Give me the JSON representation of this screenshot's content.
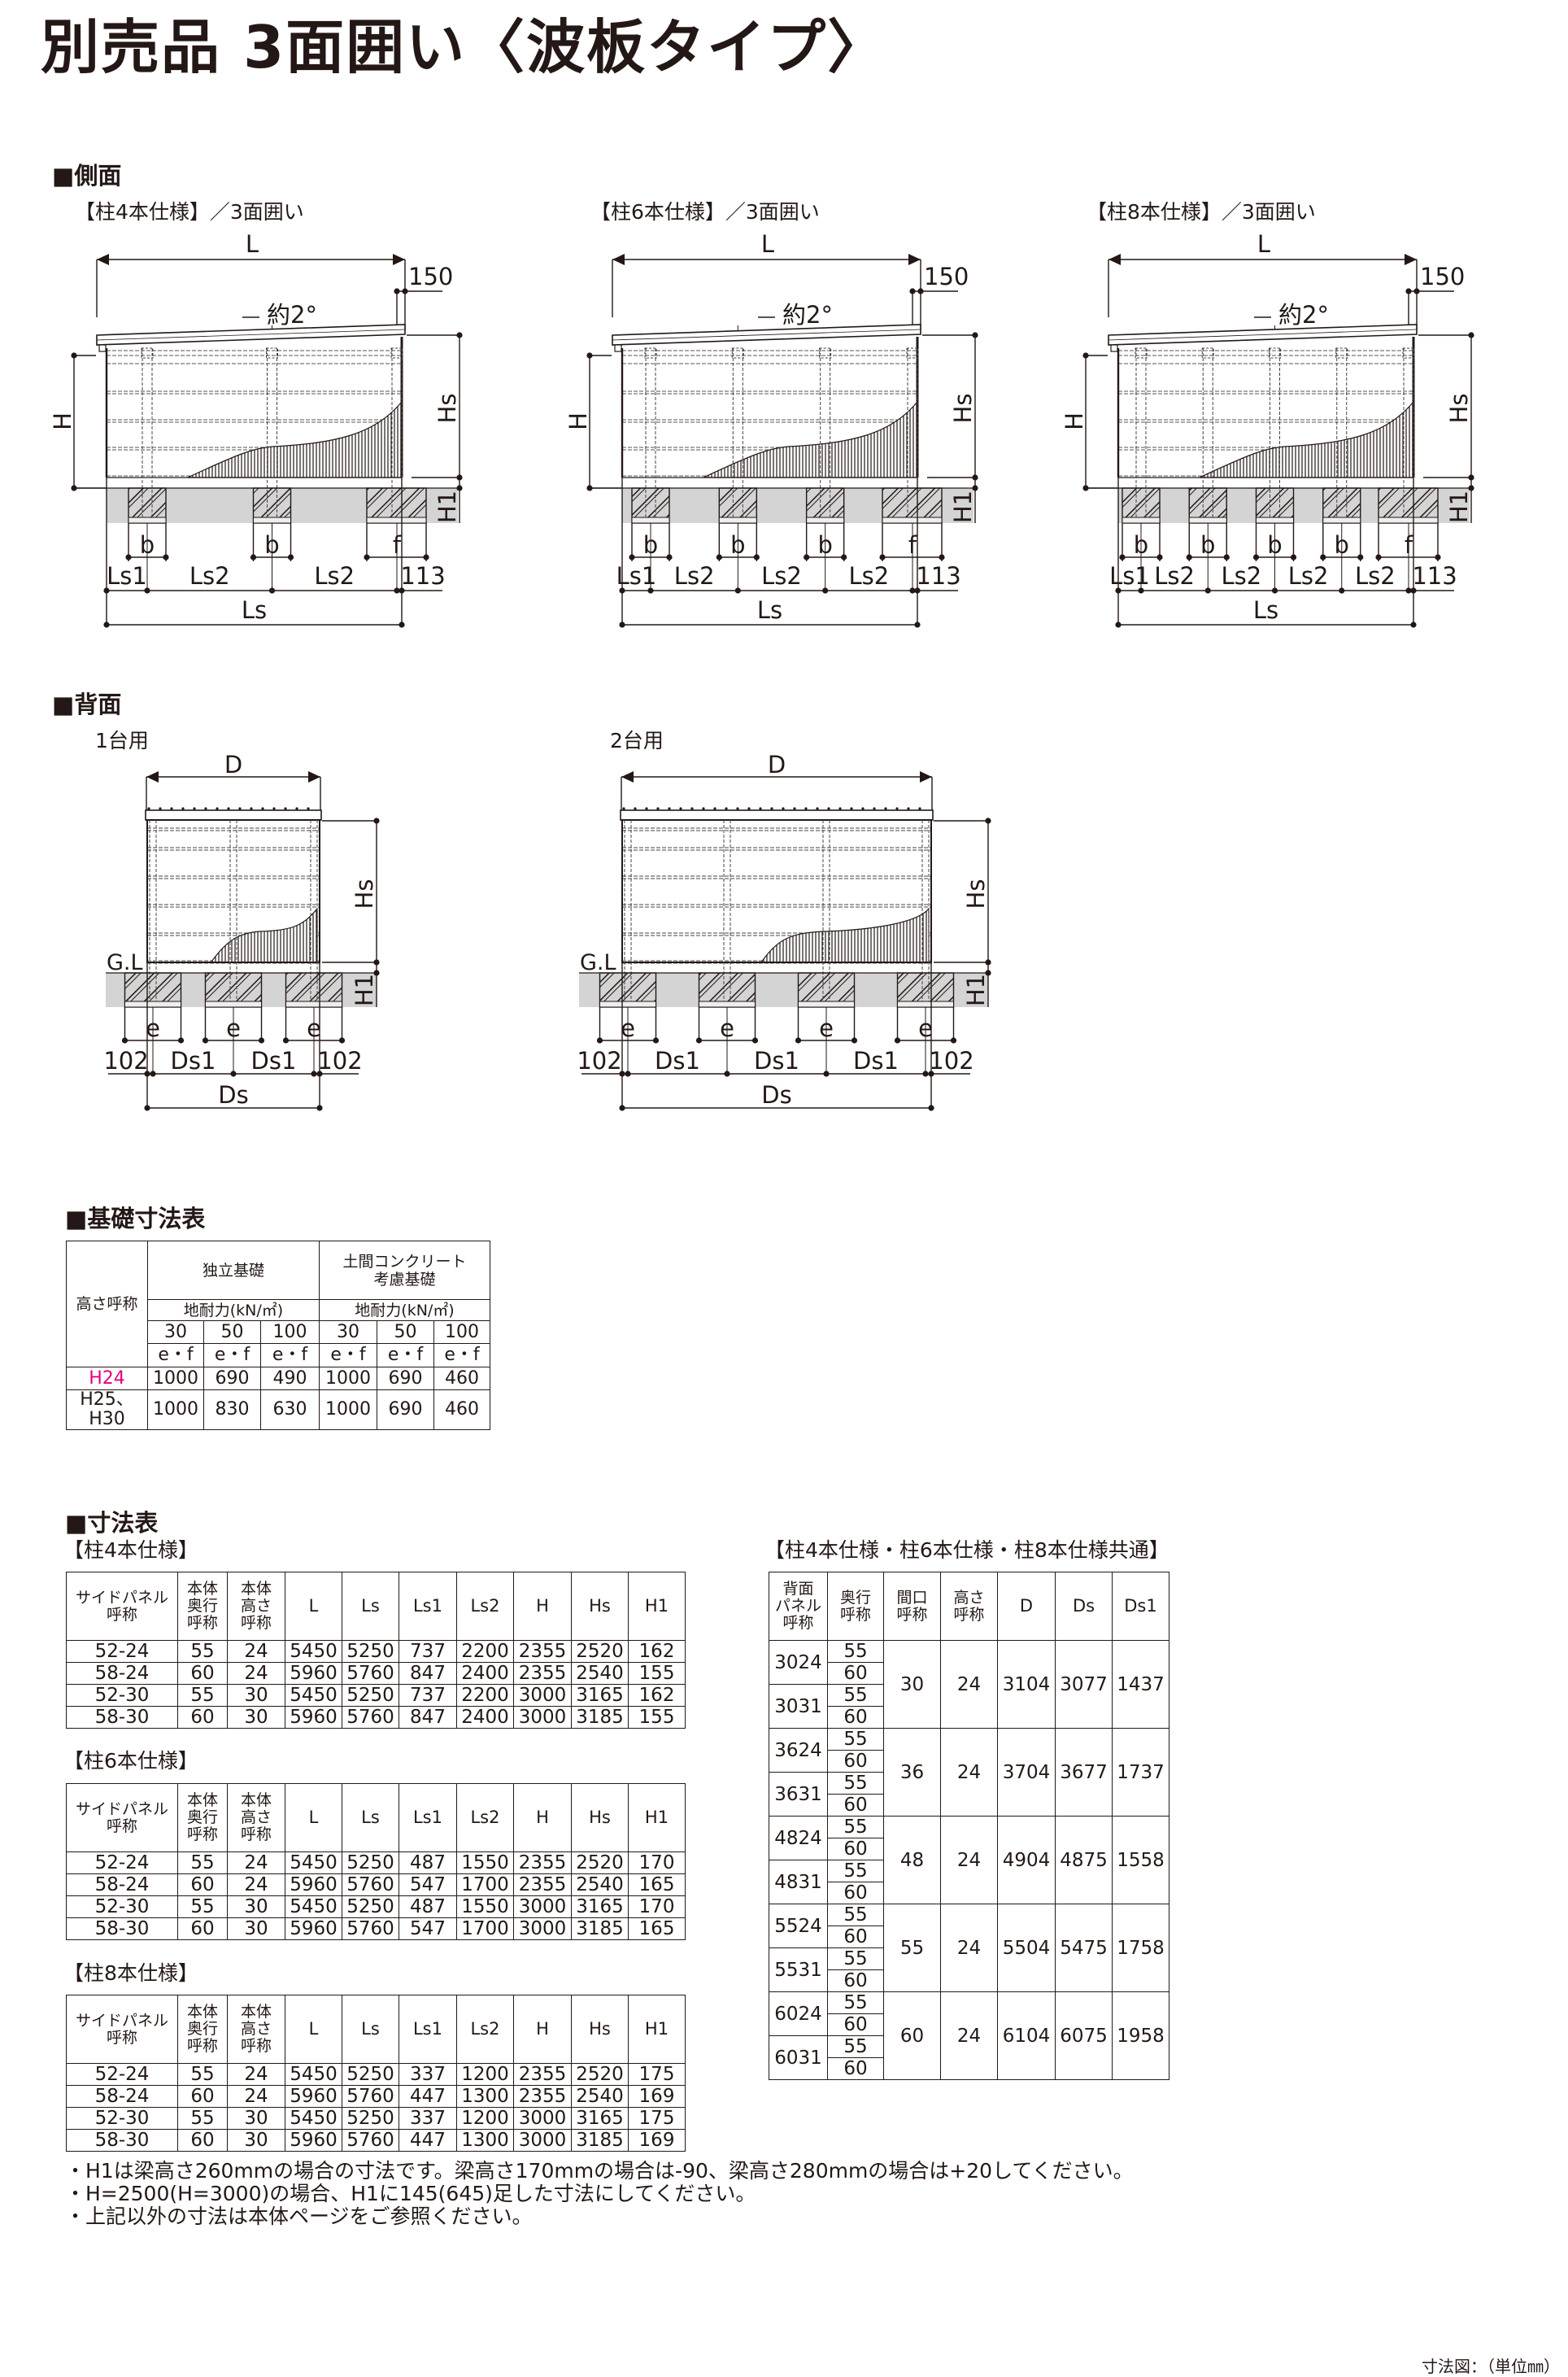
{
  "title": "別売品 3面囲い〈波板タイプ〉",
  "colors": {
    "text": "#231815",
    "highlight": "#e4007f",
    "ground": "#d4d4d4"
  },
  "side": {
    "heading": "■側面",
    "views": [
      {
        "caption": "【柱4本仕様】／3面囲い",
        "L": "L",
        "overhang": "150",
        "angle": "約2°",
        "H": "H",
        "Hs": "Hs",
        "H1": "H1",
        "post_labels": [
          "b",
          "b",
          "f"
        ],
        "segments": [
          "Ls1",
          "Ls2",
          "Ls2"
        ],
        "end": "113",
        "total": "Ls"
      },
      {
        "caption": "【柱6本仕様】／3面囲い",
        "L": "L",
        "overhang": "150",
        "angle": "約2°",
        "H": "H",
        "Hs": "Hs",
        "H1": "H1",
        "post_labels": [
          "b",
          "b",
          "b",
          "f"
        ],
        "segments": [
          "Ls1",
          "Ls2",
          "Ls2",
          "Ls2"
        ],
        "end": "113",
        "total": "Ls"
      },
      {
        "caption": "【柱8本仕様】／3面囲い",
        "L": "L",
        "overhang": "150",
        "angle": "約2°",
        "H": "H",
        "Hs": "Hs",
        "H1": "H1",
        "post_labels": [
          "b",
          "b",
          "b",
          "b",
          "f"
        ],
        "segments": [
          "Ls1",
          "Ls2",
          "Ls2",
          "Ls2",
          "Ls2"
        ],
        "end": "113",
        "total": "Ls"
      }
    ]
  },
  "back": {
    "heading": "■背面",
    "views": [
      {
        "caption": "1台用",
        "D": "D",
        "Hs": "Hs",
        "H1": "H1",
        "GL": "G.L",
        "post_labels": [
          "e",
          "e",
          "e"
        ],
        "segments": [
          "Ds1",
          "Ds1"
        ],
        "end_left": "102",
        "end_right": "102",
        "total": "Ds"
      },
      {
        "caption": "2台用",
        "D": "D",
        "Hs": "Hs",
        "H1": "H1",
        "GL": "G.L",
        "post_labels": [
          "e",
          "e",
          "e",
          "e"
        ],
        "segments": [
          "Ds1",
          "Ds1",
          "Ds1"
        ],
        "end_left": "102",
        "end_right": "102",
        "total": "Ds"
      }
    ]
  },
  "foundation": {
    "heading": "■基礎寸法表",
    "row_header": "高さ呼称",
    "groups": [
      "独立基礎",
      "土間コンクリート\n考慮基礎"
    ],
    "bearing": [
      "地耐力(kN/㎡)",
      "地耐力(kN/㎡)"
    ],
    "loads": [
      "30",
      "50",
      "100",
      "30",
      "50",
      "100"
    ],
    "sub": [
      "e・f",
      "e・f",
      "e・f",
      "e・f",
      "e・f",
      "e・f"
    ],
    "rows": [
      {
        "name": "H24",
        "values": [
          "1000",
          "690",
          "490",
          "1000",
          "690",
          "460"
        ]
      },
      {
        "name": "H25、H30",
        "values": [
          "1000",
          "830",
          "630",
          "1000",
          "690",
          "460"
        ]
      }
    ]
  },
  "dimensions": {
    "heading": "■寸法表",
    "tables": [
      {
        "caption": "【柱4本仕様】",
        "headers": [
          "サイドパネル\n呼称",
          "本体\n奥行\n呼称",
          "本体\n高さ\n呼称",
          "L",
          "Ls",
          "Ls1",
          "Ls2",
          "H",
          "Hs",
          "H1"
        ],
        "rows": [
          [
            "52-24",
            "55",
            "24",
            "5450",
            "5250",
            "737",
            "2200",
            "2355",
            "2520",
            "162"
          ],
          [
            "58-24",
            "60",
            "24",
            "5960",
            "5760",
            "847",
            "2400",
            "2355",
            "2540",
            "155"
          ],
          [
            "52-30",
            "55",
            "30",
            "5450",
            "5250",
            "737",
            "2200",
            "3000",
            "3165",
            "162"
          ],
          [
            "58-30",
            "60",
            "30",
            "5960",
            "5760",
            "847",
            "2400",
            "3000",
            "3185",
            "155"
          ]
        ]
      },
      {
        "caption": "【柱6本仕様】",
        "headers": [
          "サイドパネル\n呼称",
          "本体\n奥行\n呼称",
          "本体\n高さ\n呼称",
          "L",
          "Ls",
          "Ls1",
          "Ls2",
          "H",
          "Hs",
          "H1"
        ],
        "rows": [
          [
            "52-24",
            "55",
            "24",
            "5450",
            "5250",
            "487",
            "1550",
            "2355",
            "2520",
            "170"
          ],
          [
            "58-24",
            "60",
            "24",
            "5960",
            "5760",
            "547",
            "1700",
            "2355",
            "2540",
            "165"
          ],
          [
            "52-30",
            "55",
            "30",
            "5450",
            "5250",
            "487",
            "1550",
            "3000",
            "3165",
            "170"
          ],
          [
            "58-30",
            "60",
            "30",
            "5960",
            "5760",
            "547",
            "1700",
            "3000",
            "3185",
            "165"
          ]
        ]
      },
      {
        "caption": "【柱8本仕様】",
        "headers": [
          "サイドパネル\n呼称",
          "本体\n奥行\n呼称",
          "本体\n高さ\n呼称",
          "L",
          "Ls",
          "Ls1",
          "Ls2",
          "H",
          "Hs",
          "H1"
        ],
        "rows": [
          [
            "52-24",
            "55",
            "24",
            "5450",
            "5250",
            "337",
            "1200",
            "2355",
            "2520",
            "175"
          ],
          [
            "58-24",
            "60",
            "24",
            "5960",
            "5760",
            "447",
            "1300",
            "2355",
            "2540",
            "169"
          ],
          [
            "52-30",
            "55",
            "30",
            "5450",
            "5250",
            "337",
            "1200",
            "3000",
            "3165",
            "175"
          ],
          [
            "58-30",
            "60",
            "30",
            "5960",
            "5760",
            "447",
            "1300",
            "3000",
            "3185",
            "169"
          ]
        ]
      }
    ],
    "common": {
      "caption": "【柱4本仕様・柱6本仕様・柱8本仕様共通】",
      "headers": [
        "背面\nパネル\n呼称",
        "奥行\n呼称",
        "間口\n呼称",
        "高さ\n呼称",
        "D",
        "Ds",
        "Ds1"
      ],
      "groups": [
        {
          "frontage": "30",
          "height": "24",
          "D": "3104",
          "Ds": "3077",
          "Ds1": "1437",
          "panels": [
            {
              "name": "3024",
              "depths": [
                "55",
                "60"
              ]
            },
            {
              "name": "3031",
              "depths": [
                "55",
                "60"
              ]
            }
          ]
        },
        {
          "frontage": "36",
          "height": "24",
          "D": "3704",
          "Ds": "3677",
          "Ds1": "1737",
          "panels": [
            {
              "name": "3624",
              "depths": [
                "55",
                "60"
              ]
            },
            {
              "name": "3631",
              "depths": [
                "55",
                "60"
              ]
            }
          ]
        },
        {
          "frontage": "48",
          "height": "24",
          "D": "4904",
          "Ds": "4875",
          "Ds1": "1558",
          "panels": [
            {
              "name": "4824",
              "depths": [
                "55",
                "60"
              ]
            },
            {
              "name": "4831",
              "depths": [
                "55",
                "60"
              ]
            }
          ]
        },
        {
          "frontage": "55",
          "height": "24",
          "D": "5504",
          "Ds": "5475",
          "Ds1": "1758",
          "panels": [
            {
              "name": "5524",
              "depths": [
                "55",
                "60"
              ]
            },
            {
              "name": "5531",
              "depths": [
                "55",
                "60"
              ]
            }
          ]
        },
        {
          "frontage": "60",
          "height": "24",
          "D": "6104",
          "Ds": "6075",
          "Ds1": "1958",
          "panels": [
            {
              "name": "6024",
              "depths": [
                "55",
                "60"
              ]
            },
            {
              "name": "6031",
              "depths": [
                "55",
                "60"
              ]
            }
          ]
        }
      ]
    },
    "notes": [
      "・H1は梁高さ260mmの場合の寸法です。梁高さ170mmの場合は-90、梁高さ280mmの場合は+20してください。",
      "・H=2500(H=3000)の場合、H1に145(645)足した寸法にしてください。",
      "・上記以外の寸法は本体ページをご参照ください。"
    ]
  },
  "unit_note": "寸法図：（単位㎜）"
}
